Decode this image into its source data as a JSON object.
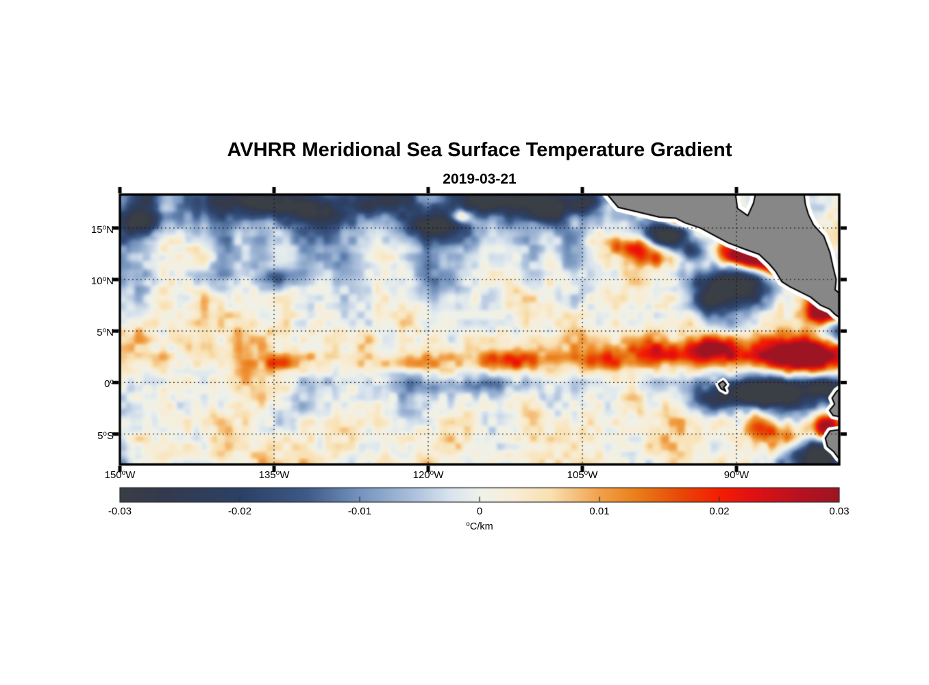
{
  "figure": {
    "background": "#ffffff",
    "land_color": "#878787",
    "coast_outline": "#000000",
    "coast_gap_color": "#ffffff"
  },
  "chart_data": {
    "type": "heatmap",
    "title": "AVHRR Meridional Sea Surface Temperature Gradient",
    "date": "2019-03-21",
    "units": "°C/km",
    "lon_range": [
      -150,
      -80
    ],
    "lat_range": [
      18.25,
      -7.95
    ],
    "grid_on": true,
    "lon_ticks": [
      {
        "value": -150,
        "deg": "150",
        "hemi": "W"
      },
      {
        "value": -135,
        "deg": "135",
        "hemi": "W"
      },
      {
        "value": -120,
        "deg": "120",
        "hemi": "W"
      },
      {
        "value": -105,
        "deg": "105",
        "hemi": "W"
      },
      {
        "value": -90,
        "deg": "90",
        "hemi": "W"
      }
    ],
    "lat_ticks": [
      {
        "value": 15,
        "deg": "15",
        "hemi": "N"
      },
      {
        "value": 10,
        "deg": "10",
        "hemi": "N"
      },
      {
        "value": 5,
        "deg": "5",
        "hemi": "N"
      },
      {
        "value": 0,
        "deg": "0",
        "hemi": ""
      },
      {
        "value": -5,
        "deg": "5",
        "hemi": "S"
      }
    ],
    "colorbar": {
      "min": -0.03,
      "max": 0.03,
      "ticks": [
        {
          "value": -0.03,
          "label": "-0.03"
        },
        {
          "value": -0.02,
          "label": "-0.02"
        },
        {
          "value": -0.01,
          "label": "-0.01"
        },
        {
          "value": 0,
          "label": "0"
        },
        {
          "value": 0.01,
          "label": "0.01"
        },
        {
          "value": 0.02,
          "label": "0.02"
        },
        {
          "value": 0.03,
          "label": "0.03"
        }
      ],
      "unit_sup": "o",
      "unit_text": "C/km"
    },
    "colormap": [
      [
        0.0,
        "#3a3e45"
      ],
      [
        0.06,
        "#343a4e"
      ],
      [
        0.17,
        "#2c4166"
      ],
      [
        0.26,
        "#3e5a88"
      ],
      [
        0.33,
        "#7291bc"
      ],
      [
        0.4,
        "#a6bcd9"
      ],
      [
        0.46,
        "#d9e4ee"
      ],
      [
        0.5,
        "#eff2ea"
      ],
      [
        0.545,
        "#f8eed8"
      ],
      [
        0.6,
        "#f8e0b0"
      ],
      [
        0.667,
        "#f2a14a"
      ],
      [
        0.72,
        "#ea7d18"
      ],
      [
        0.78,
        "#e84807"
      ],
      [
        0.833,
        "#f51d02"
      ],
      [
        0.88,
        "#e01113"
      ],
      [
        0.94,
        "#bb1120"
      ],
      [
        1.0,
        "#9d1522"
      ]
    ],
    "grid": {
      "lon_start": -150,
      "lon_step": 2.5,
      "lat_start": 18.25,
      "lat_step": -2.62,
      "unit_scale": 0.001,
      "values_milli": [
        [
          -14,
          -8,
          -3,
          -8,
          -16,
          -18,
          -15,
          -17,
          -10,
          -4,
          -6,
          -12,
          -8,
          -16,
          -18,
          -10,
          -17,
          -19,
          -9,
          -4,
          0,
          0,
          0,
          0,
          2,
          3,
          2,
          1,
          2
        ],
        [
          -18,
          -11,
          -4,
          -9,
          -14,
          -11,
          -6,
          -11,
          -15,
          -7,
          -2,
          -8,
          -14,
          -13,
          -7,
          -5,
          -11,
          -13,
          -6,
          -2,
          -5,
          -3,
          0,
          3,
          3,
          2,
          3,
          2,
          2
        ],
        [
          -7,
          -3,
          3,
          -2,
          -9,
          -5,
          -2,
          -5,
          -9,
          -4,
          2,
          -4,
          -9,
          -7,
          -3,
          -2,
          -5,
          -8,
          -3,
          3,
          5,
          2,
          3,
          3,
          2,
          -3,
          2,
          2,
          2
        ],
        [
          -9,
          -6,
          -2,
          -4,
          -7,
          -4,
          -2,
          -3,
          -5,
          -2,
          1,
          -3,
          -11,
          -5,
          -2,
          -1,
          -3,
          -4,
          -2,
          2,
          3,
          2,
          -2,
          -5,
          -7,
          -3,
          3,
          4,
          3
        ],
        [
          -3,
          -2,
          2,
          3,
          2,
          -2,
          -1,
          2,
          1,
          -1,
          2,
          1,
          -2,
          -3,
          -1,
          1,
          2,
          1,
          -1,
          2,
          3,
          2,
          -3,
          -7,
          -5,
          -3,
          2,
          4,
          -2
        ],
        [
          2,
          3,
          2,
          1,
          3,
          2,
          1,
          2,
          3,
          1,
          2,
          3,
          2,
          1,
          2,
          3,
          2,
          3,
          2,
          3,
          4,
          3,
          2,
          -2,
          -3,
          2,
          4,
          3,
          -3
        ],
        [
          3,
          4,
          3,
          5,
          4,
          6,
          4,
          3,
          5,
          4,
          4,
          6,
          5,
          4,
          6,
          5,
          4,
          6,
          5,
          7,
          8,
          7,
          6,
          8,
          9,
          10,
          9,
          7,
          5
        ],
        [
          2,
          1,
          3,
          2,
          1,
          2,
          3,
          -2,
          -3,
          -2,
          1,
          -4,
          -3,
          -2,
          -4,
          -3,
          -2,
          -4,
          -3,
          -2,
          -3,
          -5,
          -6,
          -7,
          -9,
          -10,
          -7,
          -5,
          -4
        ],
        [
          -4,
          -2,
          2,
          3,
          2,
          1,
          -2,
          -3,
          2,
          3,
          2,
          -2,
          -3,
          2,
          3,
          2,
          3,
          2,
          -2,
          -3,
          2,
          3,
          4,
          5,
          4,
          6,
          5,
          -3,
          -5
        ],
        [
          2,
          3,
          1,
          -2,
          2,
          4,
          2,
          3,
          5,
          3,
          2,
          4,
          3,
          2,
          4,
          2,
          3,
          5,
          3,
          2,
          4,
          5,
          3,
          4,
          6,
          7,
          4,
          -7,
          -9
        ],
        [
          -5,
          -3,
          2,
          4,
          3,
          2,
          4,
          5,
          3,
          2,
          4,
          3,
          5,
          3,
          2,
          4,
          3,
          2,
          4,
          3,
          2,
          4,
          5,
          3,
          6,
          4,
          -6,
          -11,
          -7
        ]
      ]
    },
    "features_milli": [
      [
        -147.8,
        15.6,
        1.4,
        0.9,
        -20
      ],
      [
        -147.5,
        17.9,
        1.1,
        0.7,
        -18
      ],
      [
        -141.0,
        17.6,
        1.6,
        0.8,
        -16
      ],
      [
        -136.0,
        17.4,
        2.0,
        0.9,
        -18
      ],
      [
        -131.2,
        16.6,
        2.2,
        0.9,
        -18
      ],
      [
        -124.8,
        17.6,
        2.4,
        1.0,
        -22
      ],
      [
        -119.6,
        15.3,
        2.2,
        0.8,
        -20
      ],
      [
        -113.8,
        17.7,
        2.2,
        0.9,
        -24
      ],
      [
        -108.8,
        17.0,
        1.6,
        0.9,
        -22
      ],
      [
        -104.9,
        17.4,
        1.3,
        0.8,
        -20
      ],
      [
        -116.7,
        16.1,
        0.8,
        0.5,
        22
      ],
      [
        -135.2,
        10.1,
        1.4,
        0.7,
        -15
      ],
      [
        -95.6,
        15.9,
        0.9,
        0.45,
        40
      ],
      [
        -96.9,
        14.3,
        1.5,
        0.9,
        -34
      ],
      [
        -99.8,
        13.2,
        1.8,
        0.7,
        20
      ],
      [
        -98.0,
        12.0,
        1.4,
        0.6,
        16
      ],
      [
        -94.2,
        12.8,
        1.1,
        0.8,
        -20
      ],
      [
        -88.9,
        12.4,
        1.7,
        0.9,
        46
      ],
      [
        -86.3,
        11.1,
        1.1,
        0.6,
        22
      ],
      [
        -89.8,
        9.4,
        2.3,
        1.3,
        -32
      ],
      [
        -92.5,
        8.0,
        1.3,
        1.0,
        -22
      ],
      [
        -81.3,
        6.9,
        1.3,
        1.0,
        38
      ],
      [
        -80.3,
        4.9,
        1.3,
        0.9,
        -22
      ],
      [
        -84.0,
        2.7,
        2.9,
        1.2,
        38
      ],
      [
        -92.3,
        3.3,
        1.6,
        0.9,
        26
      ],
      [
        -97.8,
        2.9,
        2.6,
        0.8,
        14
      ],
      [
        -87.3,
        -1.1,
        3.0,
        0.95,
        -40
      ],
      [
        -92.6,
        -1.9,
        1.6,
        0.9,
        -18
      ],
      [
        -81.2,
        -4.3,
        1.2,
        0.95,
        40
      ],
      [
        -86.0,
        -4.6,
        2.2,
        1.1,
        18
      ],
      [
        -82.0,
        -7.2,
        2.0,
        1.1,
        -26
      ],
      [
        -81.0,
        -0.5,
        1.5,
        0.8,
        -24
      ],
      [
        -134.6,
        1.9,
        1.3,
        0.55,
        14
      ],
      [
        -122.5,
        1.8,
        3.2,
        0.6,
        10
      ],
      [
        -111.5,
        2.1,
        2.6,
        0.7,
        14
      ],
      [
        -104.0,
        2.0,
        2.2,
        0.7,
        12
      ],
      [
        -116.0,
        -0.3,
        4.0,
        0.6,
        -7
      ],
      [
        -84.8,
        -3.2,
        1.7,
        1.2,
        -14
      ]
    ],
    "noise": {
      "scale1_deg": 4.5,
      "amp1_milli": 3,
      "scale2_deg": 2.0,
      "amp2_milli": 4,
      "scale3_deg": 0.8,
      "amp3_milli": 3.5
    },
    "land_polygons": {
      "central_america": [
        [
          -103.2,
          19
        ],
        [
          -101.5,
          17.0
        ],
        [
          -99.8,
          16.6
        ],
        [
          -97.5,
          16.05
        ],
        [
          -95.9,
          15.95
        ],
        [
          -95.0,
          15.5
        ],
        [
          -93.5,
          15.0
        ],
        [
          -92.2,
          14.3
        ],
        [
          -90.8,
          13.55
        ],
        [
          -89.2,
          12.95
        ],
        [
          -87.8,
          12.45
        ],
        [
          -86.8,
          11.5
        ],
        [
          -86.2,
          10.8
        ],
        [
          -85.6,
          9.8
        ],
        [
          -84.8,
          9.3
        ],
        [
          -83.8,
          8.8
        ],
        [
          -82.8,
          8.3
        ],
        [
          -81.8,
          7.5
        ],
        [
          -80.9,
          7.1
        ],
        [
          -80.4,
          6.6
        ],
        [
          -79.5,
          6.0
        ],
        [
          -79.5,
          8.3
        ],
        [
          -80.4,
          9.0
        ],
        [
          -80.3,
          10.0
        ],
        [
          -80.6,
          11.2
        ],
        [
          -80.9,
          12.6
        ],
        [
          -81.5,
          14.2
        ],
        [
          -82.5,
          15.3
        ],
        [
          -83.0,
          16.3
        ],
        [
          -83.3,
          17.3
        ],
        [
          -83.5,
          19
        ],
        [
          -88.0,
          19
        ],
        [
          -88.35,
          17.4
        ],
        [
          -88.9,
          16.2
        ],
        [
          -89.9,
          16.9
        ],
        [
          -90.2,
          19
        ]
      ],
      "ecuador": [
        [
          -79.5,
          -0.3
        ],
        [
          -80.25,
          -0.85
        ],
        [
          -80.7,
          -1.5
        ],
        [
          -80.45,
          -2.1
        ],
        [
          -80.95,
          -2.7
        ],
        [
          -80.6,
          -3.2
        ],
        [
          -79.5,
          -3.4
        ]
      ],
      "peru": [
        [
          -79.5,
          -4.5
        ],
        [
          -80.9,
          -4.7
        ],
        [
          -81.35,
          -5.4
        ],
        [
          -81.15,
          -6.2
        ],
        [
          -80.55,
          -6.7
        ],
        [
          -80.1,
          -7.3
        ],
        [
          -79.5,
          -7.6
        ]
      ],
      "galapagos": [
        [
          -91.75,
          -0.15
        ],
        [
          -91.3,
          0.15
        ],
        [
          -91.0,
          -0.2
        ],
        [
          -91.25,
          -0.45
        ],
        [
          -91.05,
          -0.85
        ],
        [
          -91.5,
          -0.6
        ]
      ]
    }
  }
}
